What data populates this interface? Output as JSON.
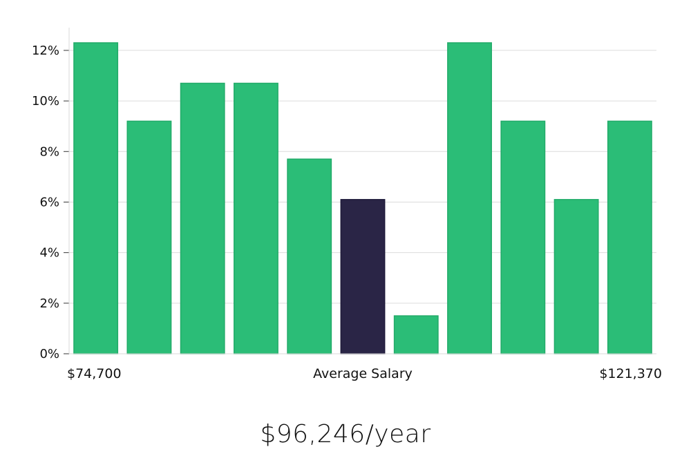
{
  "chart_data": {
    "type": "bar",
    "values": [
      12.3,
      9.2,
      10.7,
      10.7,
      7.7,
      6.1,
      1.5,
      12.3,
      9.2,
      6.1,
      9.2
    ],
    "highlight_index": 5,
    "bar_color": "#2bbd77",
    "highlight_color": "#2a2546",
    "ylim": [
      0,
      12.9
    ],
    "yticks": [
      0,
      2,
      4,
      6,
      8,
      10,
      12
    ],
    "ytick_suffix": "%",
    "grid": true,
    "x_labels": {
      "left": "$74,700",
      "center": "Average Salary",
      "right": "$121,370"
    }
  },
  "summary": {
    "salary": "$96,246/year"
  }
}
